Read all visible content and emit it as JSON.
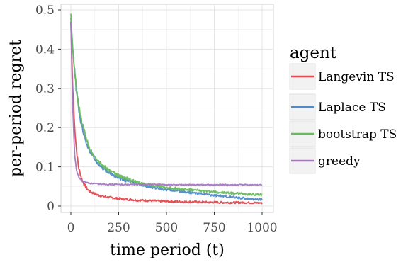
{
  "chart_data": {
    "type": "line",
    "title": "",
    "xlabel": "time period (t)",
    "ylabel": "per-period regret",
    "xlim": [
      0,
      1000
    ],
    "ylim": [
      0,
      0.5
    ],
    "x_ticks": [
      0,
      250,
      500,
      750,
      1000
    ],
    "y_ticks": [
      0,
      0.1,
      0.2,
      0.3,
      0.4,
      0.5
    ],
    "x_tick_labels": [
      "0",
      "250",
      "500",
      "750",
      "1000"
    ],
    "y_tick_labels": [
      "0",
      "0.1",
      "0.2",
      "0.3",
      "0.4",
      "0.5"
    ],
    "grid": true,
    "legend": {
      "title": "agent",
      "position": "right"
    },
    "x": [
      0,
      5,
      10,
      20,
      30,
      40,
      50,
      60,
      70,
      80,
      90,
      100,
      125,
      150,
      175,
      200,
      250,
      300,
      350,
      400,
      450,
      500,
      600,
      700,
      800,
      900,
      1000
    ],
    "series": [
      {
        "name": "Langevin TS",
        "color": "#e34a4f",
        "values": [
          0.47,
          0.38,
          0.3,
          0.2,
          0.14,
          0.1,
          0.08,
          0.065,
          0.055,
          0.047,
          0.041,
          0.037,
          0.031,
          0.027,
          0.024,
          0.022,
          0.019,
          0.017,
          0.015,
          0.014,
          0.013,
          0.012,
          0.011,
          0.01,
          0.009,
          0.009,
          0.008
        ]
      },
      {
        "name": "Laplace TS",
        "color": "#4f8bc9",
        "values": [
          0.48,
          0.44,
          0.4,
          0.34,
          0.29,
          0.25,
          0.22,
          0.2,
          0.18,
          0.165,
          0.15,
          0.14,
          0.12,
          0.105,
          0.093,
          0.085,
          0.072,
          0.063,
          0.056,
          0.05,
          0.046,
          0.042,
          0.036,
          0.03,
          0.025,
          0.02,
          0.016
        ]
      },
      {
        "name": "bootstrap TS",
        "color": "#6aba5f",
        "values": [
          0.49,
          0.44,
          0.4,
          0.34,
          0.29,
          0.26,
          0.23,
          0.21,
          0.19,
          0.17,
          0.16,
          0.145,
          0.125,
          0.11,
          0.1,
          0.09,
          0.078,
          0.068,
          0.06,
          0.055,
          0.051,
          0.047,
          0.042,
          0.038,
          0.034,
          0.031,
          0.029
        ]
      },
      {
        "name": "greedy",
        "color": "#a678c0",
        "values": [
          0.47,
          0.36,
          0.25,
          0.13,
          0.09,
          0.075,
          0.068,
          0.064,
          0.062,
          0.06,
          0.059,
          0.058,
          0.057,
          0.056,
          0.056,
          0.055,
          0.055,
          0.055,
          0.055,
          0.055,
          0.055,
          0.054,
          0.054,
          0.054,
          0.054,
          0.054,
          0.054
        ]
      }
    ]
  }
}
